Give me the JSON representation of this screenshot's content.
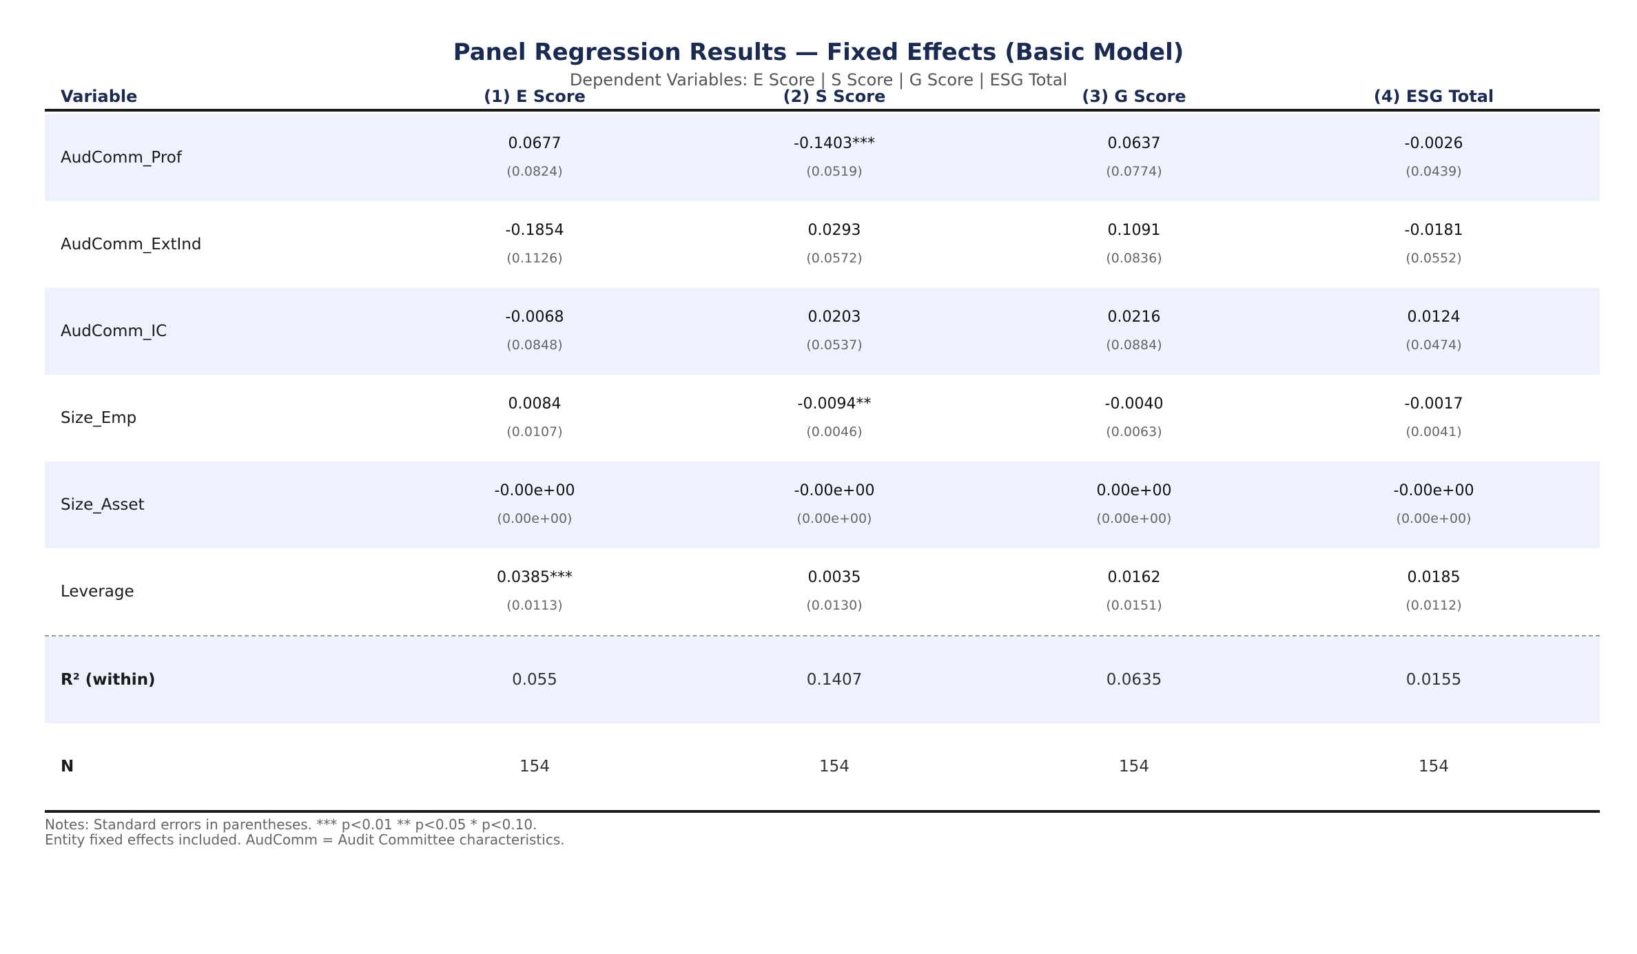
{
  "title": "Panel Regression Results — Fixed Effects (Basic Model)",
  "subtitle": "Dependent Variables: E Score  |  S Score  |  G Score  |  ESG Total",
  "chart_data": {
    "type": "table",
    "columns": [
      "Variable",
      "(1) E Score",
      "(2) S Score",
      "(3) G Score",
      "(4) ESG Total"
    ],
    "rows": [
      {
        "variable": "AudComm_Prof",
        "coef": [
          "0.0677",
          "-0.1403***",
          "0.0637",
          "-0.0026"
        ],
        "se": [
          "(0.0824)",
          "(0.0519)",
          "(0.0774)",
          "(0.0439)"
        ]
      },
      {
        "variable": "AudComm_ExtInd",
        "coef": [
          "-0.1854",
          "0.0293",
          "0.1091",
          "-0.0181"
        ],
        "se": [
          "(0.1126)",
          "(0.0572)",
          "(0.0836)",
          "(0.0552)"
        ]
      },
      {
        "variable": "AudComm_IC",
        "coef": [
          "-0.0068",
          "0.0203",
          "0.0216",
          "0.0124"
        ],
        "se": [
          "(0.0848)",
          "(0.0537)",
          "(0.0884)",
          "(0.0474)"
        ]
      },
      {
        "variable": "Size_Emp",
        "coef": [
          "0.0084",
          "-0.0094**",
          "-0.0040",
          "-0.0017"
        ],
        "se": [
          "(0.0107)",
          "(0.0046)",
          "(0.0063)",
          "(0.0041)"
        ]
      },
      {
        "variable": "Size_Asset",
        "coef": [
          "-0.00e+00",
          "-0.00e+00",
          "0.00e+00",
          "-0.00e+00"
        ],
        "se": [
          "(0.00e+00)",
          "(0.00e+00)",
          "(0.00e+00)",
          "(0.00e+00)"
        ]
      },
      {
        "variable": "Leverage",
        "coef": [
          "0.0385***",
          "0.0035",
          "0.0162",
          "0.0185"
        ],
        "se": [
          "(0.0113)",
          "(0.0130)",
          "(0.0151)",
          "(0.0112)"
        ]
      }
    ],
    "stats": [
      {
        "label": "R² (within)",
        "values": [
          "0.055",
          "0.1407",
          "0.0635",
          "0.0155"
        ]
      },
      {
        "label": "N",
        "values": [
          "154",
          "154",
          "154",
          "154"
        ]
      }
    ]
  },
  "notes": [
    "Notes: Standard errors in parentheses.  *** p<0.01  ** p<0.05  * p<0.10.",
    "Entity fixed effects included. AudComm = Audit Committee characteristics."
  ],
  "colors": {
    "header": "#1b2a50",
    "band": "#eef2fc",
    "rule": "#1a1a1a"
  }
}
